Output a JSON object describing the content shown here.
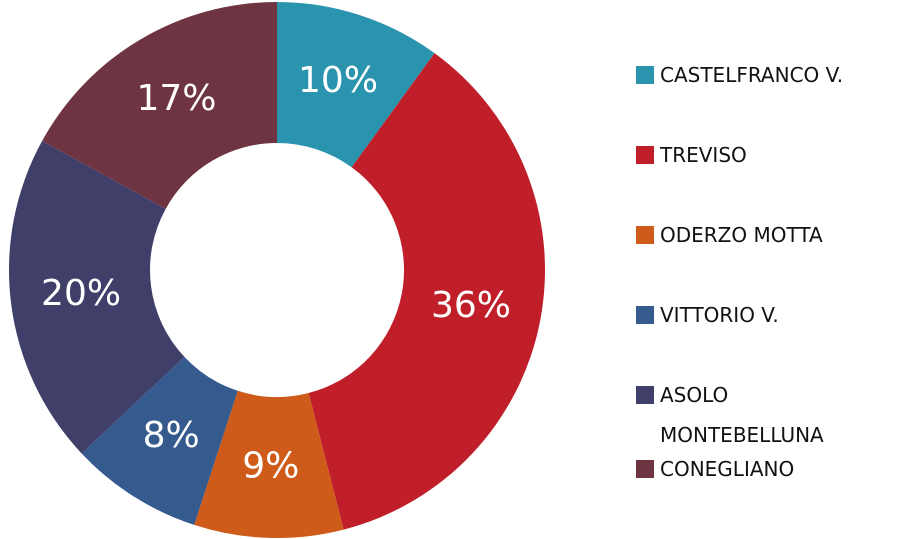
{
  "chart_data": {
    "type": "pie",
    "categories": [
      "CASTELFRANCO V.",
      "TREVISO",
      "ODERZO MOTTA",
      "VITTORIO V.",
      "ASOLO MONTEBELLUNA",
      "CONEGLIANO"
    ],
    "values": [
      10,
      36,
      9,
      8,
      20,
      17
    ],
    "value_labels": [
      "10%",
      "36%",
      "9%",
      "8%",
      "20%",
      "17%"
    ],
    "colors": [
      "#2a93ae",
      "#c01f2a",
      "#cf5b1a",
      "#345a8e",
      "#403f69",
      "#6e3441"
    ],
    "donut": true
  }
}
